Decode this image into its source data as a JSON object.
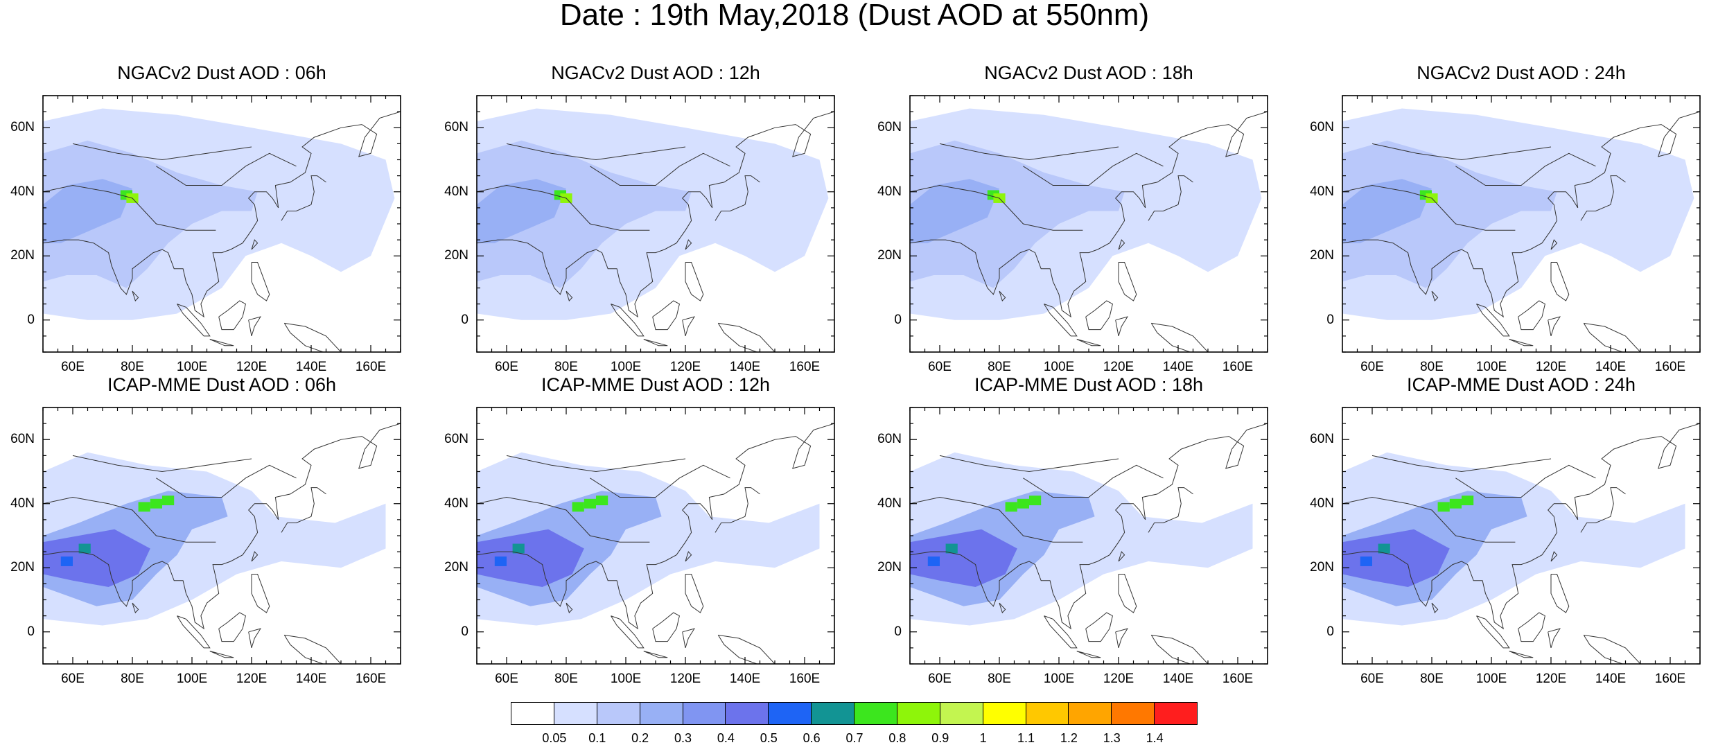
{
  "figure": {
    "title": "Date : 19th May,2018 (Dust AOD at 550nm)"
  },
  "axes": {
    "lon_range": [
      50,
      170
    ],
    "lat_range": [
      -10,
      70
    ],
    "lat_ticks": [
      "60N",
      "40N",
      "20N",
      "0"
    ],
    "lon_ticks": [
      "60E",
      "80E",
      "100E",
      "120E",
      "140E",
      "160E"
    ]
  },
  "panels": [
    {
      "title": "NGACv2 Dust AOD : 06h"
    },
    {
      "title": "NGACv2 Dust AOD : 12h"
    },
    {
      "title": "NGACv2 Dust AOD : 18h"
    },
    {
      "title": "NGACv2 Dust AOD : 24h"
    },
    {
      "title": "ICAP-MME Dust AOD : 06h"
    },
    {
      "title": "ICAP-MME Dust AOD : 12h"
    },
    {
      "title": "ICAP-MME Dust AOD : 18h"
    },
    {
      "title": "ICAP-MME Dust AOD : 24h"
    }
  ],
  "colorbar": {
    "labels": [
      "0.05",
      "0.1",
      "0.2",
      "0.3",
      "0.4",
      "0.5",
      "0.6",
      "0.7",
      "0.8",
      "0.9",
      "1",
      "1.1",
      "1.2",
      "1.3",
      "1.4"
    ],
    "colors": [
      "#ffffff",
      "#d6e0ff",
      "#b9c8fa",
      "#98b0f5",
      "#8095f2",
      "#6c73ec",
      "#1e64f5",
      "#129494",
      "#3ce61e",
      "#8ef50a",
      "#c3f550",
      "#ffff00",
      "#ffc800",
      "#ffa500",
      "#ff7800",
      "#ff1e1e"
    ]
  }
}
